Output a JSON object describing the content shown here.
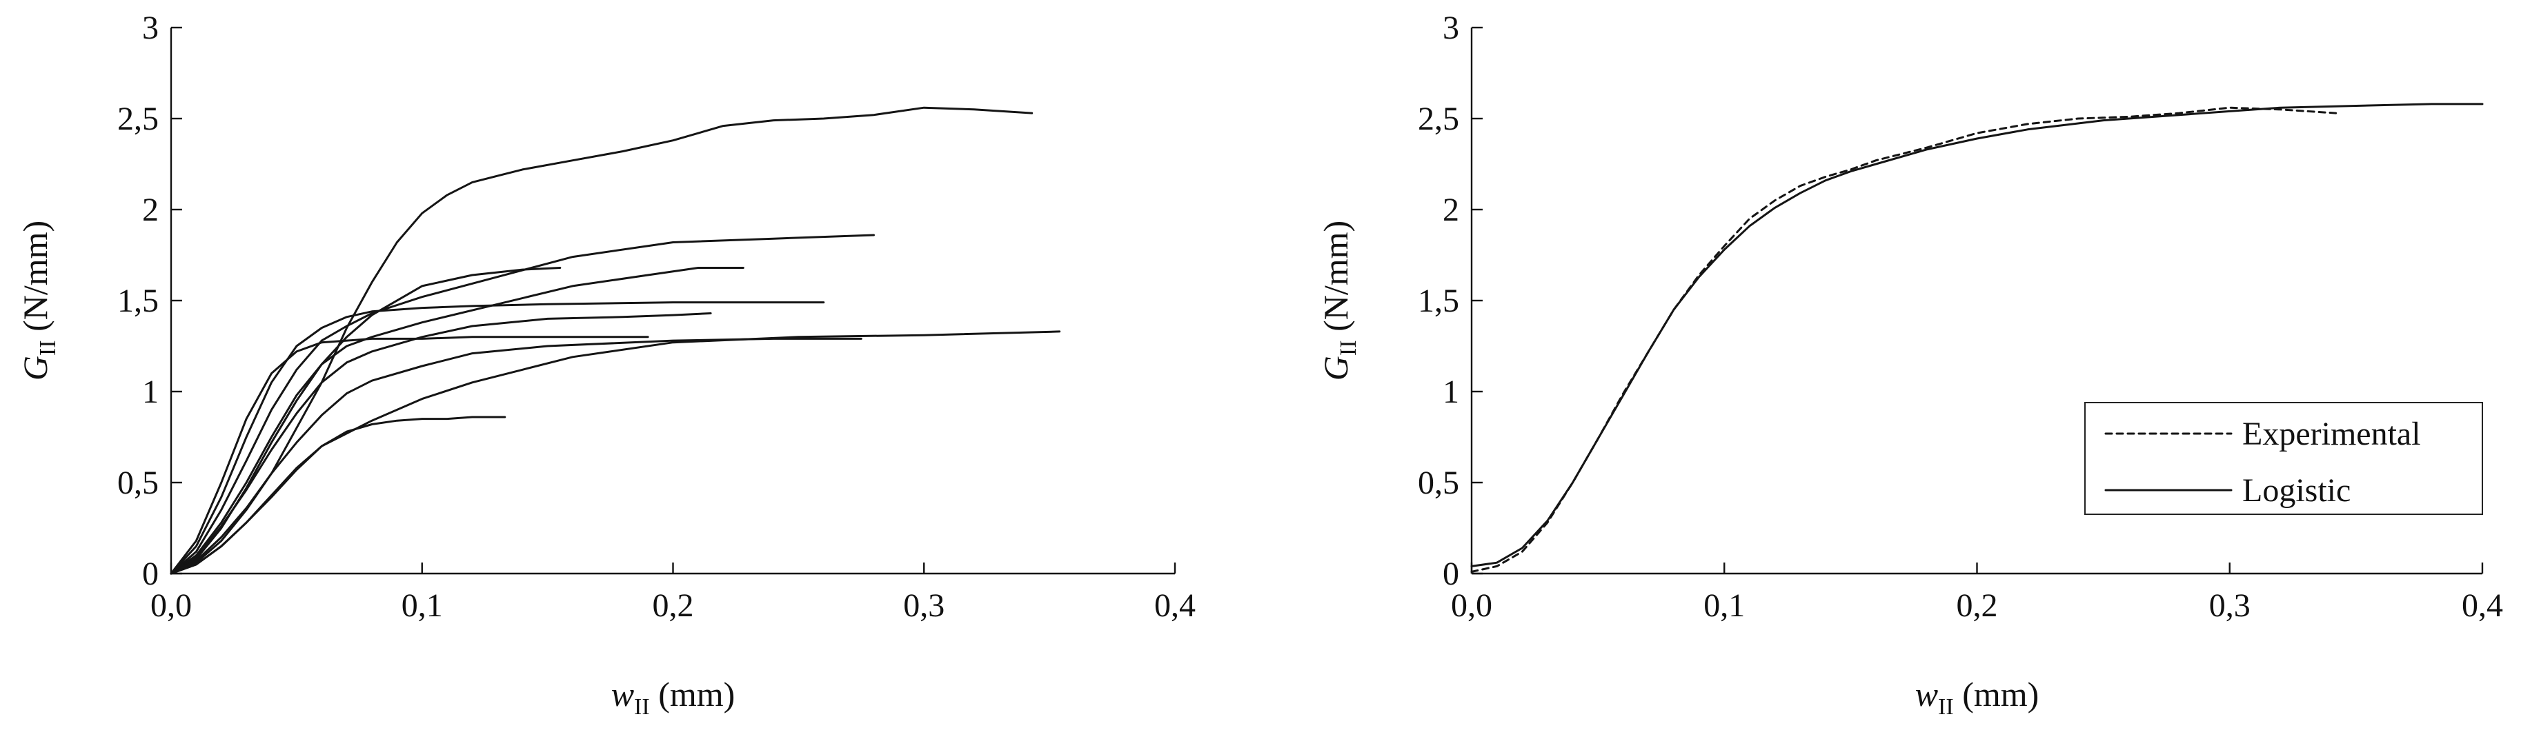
{
  "chart_data": [
    {
      "type": "line",
      "xlabel": {
        "var": "w",
        "sub": "II",
        "unit": " (mm)"
      },
      "ylabel": {
        "var": "G",
        "sub": "II",
        "unit": " (N/mm)"
      },
      "xlim": [
        0,
        0.4
      ],
      "ylim": [
        0,
        3
      ],
      "xticks": [
        "0,0",
        "0,1",
        "0,2",
        "0,3",
        "0,4"
      ],
      "yticks": [
        "0",
        "0,5",
        "1",
        "1,5",
        "2",
        "2,5",
        "3"
      ],
      "grid": false,
      "series": [
        {
          "style": "solid",
          "x": [
            0,
            0.01,
            0.02,
            0.03,
            0.04,
            0.05,
            0.06,
            0.07,
            0.08,
            0.09,
            0.1,
            0.11,
            0.12,
            0.14,
            0.16,
            0.18,
            0.2,
            0.22,
            0.24,
            0.26,
            0.28,
            0.3,
            0.32,
            0.343
          ],
          "y": [
            0,
            0.06,
            0.18,
            0.35,
            0.55,
            0.8,
            1.05,
            1.35,
            1.6,
            1.82,
            1.98,
            2.08,
            2.15,
            2.22,
            2.27,
            2.32,
            2.38,
            2.46,
            2.49,
            2.5,
            2.52,
            2.56,
            2.55,
            2.53
          ]
        },
        {
          "style": "solid",
          "x": [
            0,
            0.01,
            0.02,
            0.03,
            0.04,
            0.05,
            0.06,
            0.07,
            0.08,
            0.1,
            0.13,
            0.16,
            0.2,
            0.24,
            0.28
          ],
          "y": [
            0,
            0.12,
            0.35,
            0.62,
            0.9,
            1.12,
            1.28,
            1.36,
            1.43,
            1.52,
            1.63,
            1.74,
            1.82,
            1.84,
            1.86
          ]
        },
        {
          "style": "solid",
          "x": [
            0,
            0.01,
            0.02,
            0.03,
            0.04,
            0.05,
            0.06,
            0.07,
            0.08,
            0.1,
            0.13,
            0.16,
            0.19,
            0.21,
            0.228
          ],
          "y": [
            0,
            0.1,
            0.28,
            0.5,
            0.75,
            0.98,
            1.15,
            1.25,
            1.3,
            1.38,
            1.48,
            1.58,
            1.64,
            1.68,
            1.68
          ]
        },
        {
          "style": "solid",
          "x": [
            0,
            0.01,
            0.02,
            0.03,
            0.04,
            0.05,
            0.06,
            0.07,
            0.08,
            0.1,
            0.12,
            0.15,
            0.2,
            0.26
          ],
          "y": [
            0,
            0.15,
            0.42,
            0.75,
            1.05,
            1.25,
            1.35,
            1.41,
            1.44,
            1.46,
            1.47,
            1.48,
            1.49,
            1.49
          ]
        },
        {
          "style": "solid",
          "x": [
            0,
            0.01,
            0.02,
            0.03,
            0.04,
            0.05,
            0.06,
            0.07,
            0.08,
            0.1,
            0.12,
            0.15,
            0.18,
            0.2,
            0.215
          ],
          "y": [
            0,
            0.09,
            0.26,
            0.46,
            0.68,
            0.88,
            1.05,
            1.16,
            1.22,
            1.3,
            1.36,
            1.4,
            1.41,
            1.42,
            1.43
          ]
        },
        {
          "style": "solid",
          "x": [
            0,
            0.01,
            0.02,
            0.03,
            0.04,
            0.05,
            0.06,
            0.07,
            0.08,
            0.1,
            0.12,
            0.14,
            0.155
          ],
          "y": [
            0,
            0.08,
            0.25,
            0.47,
            0.72,
            0.95,
            1.15,
            1.3,
            1.42,
            1.58,
            1.64,
            1.67,
            1.68
          ]
        },
        {
          "style": "solid",
          "x": [
            0,
            0.01,
            0.02,
            0.03,
            0.04,
            0.05,
            0.06,
            0.07,
            0.08,
            0.1,
            0.12,
            0.15,
            0.19
          ],
          "y": [
            0,
            0.18,
            0.5,
            0.85,
            1.1,
            1.22,
            1.27,
            1.28,
            1.29,
            1.29,
            1.3,
            1.3,
            1.3
          ]
        },
        {
          "style": "solid",
          "x": [
            0,
            0.01,
            0.02,
            0.03,
            0.04,
            0.05,
            0.06,
            0.08,
            0.1,
            0.12,
            0.14,
            0.16,
            0.2,
            0.25,
            0.3,
            0.354
          ],
          "y": [
            0,
            0.05,
            0.15,
            0.28,
            0.42,
            0.57,
            0.7,
            0.84,
            0.96,
            1.05,
            1.12,
            1.19,
            1.27,
            1.3,
            1.31,
            1.33
          ]
        },
        {
          "style": "solid",
          "x": [
            0,
            0.01,
            0.02,
            0.03,
            0.04,
            0.05,
            0.06,
            0.07,
            0.08,
            0.1,
            0.12,
            0.15,
            0.2,
            0.24,
            0.275
          ],
          "y": [
            0,
            0.07,
            0.2,
            0.36,
            0.55,
            0.72,
            0.87,
            0.99,
            1.06,
            1.14,
            1.21,
            1.25,
            1.28,
            1.29,
            1.29
          ]
        },
        {
          "style": "solid",
          "x": [
            0,
            0.01,
            0.02,
            0.03,
            0.04,
            0.05,
            0.06,
            0.07,
            0.08,
            0.09,
            0.1,
            0.11,
            0.12,
            0.133
          ],
          "y": [
            0,
            0.05,
            0.15,
            0.28,
            0.43,
            0.58,
            0.7,
            0.78,
            0.82,
            0.84,
            0.85,
            0.85,
            0.86,
            0.86
          ]
        }
      ]
    },
    {
      "type": "line",
      "xlabel": {
        "var": "w",
        "sub": "II",
        "unit": " (mm)"
      },
      "ylabel": {
        "var": "G",
        "sub": "II",
        "unit": " (N/mm)"
      },
      "xlim": [
        0,
        0.4
      ],
      "ylim": [
        0,
        3
      ],
      "xticks": [
        "0,0",
        "0,1",
        "0,2",
        "0,3",
        "0,4"
      ],
      "yticks": [
        "0",
        "0,5",
        "1",
        "1,5",
        "2",
        "2,5",
        "3"
      ],
      "grid": false,
      "legend": {
        "position": "bottom-right"
      },
      "series": [
        {
          "name": "Experimental",
          "style": "dashed",
          "x": [
            0,
            0.01,
            0.02,
            0.03,
            0.04,
            0.05,
            0.06,
            0.07,
            0.08,
            0.09,
            0.1,
            0.11,
            0.12,
            0.13,
            0.14,
            0.15,
            0.16,
            0.18,
            0.2,
            0.22,
            0.24,
            0.26,
            0.28,
            0.3,
            0.32,
            0.342
          ],
          "y": [
            0.01,
            0.04,
            0.12,
            0.28,
            0.5,
            0.74,
            0.99,
            1.22,
            1.45,
            1.64,
            1.8,
            1.95,
            2.05,
            2.13,
            2.18,
            2.22,
            2.27,
            2.34,
            2.42,
            2.47,
            2.5,
            2.51,
            2.53,
            2.56,
            2.55,
            2.53
          ]
        },
        {
          "name": "Logistic",
          "style": "solid",
          "x": [
            0,
            0.01,
            0.02,
            0.03,
            0.04,
            0.05,
            0.06,
            0.07,
            0.08,
            0.09,
            0.1,
            0.11,
            0.12,
            0.13,
            0.14,
            0.15,
            0.16,
            0.18,
            0.2,
            0.22,
            0.25,
            0.28,
            0.3,
            0.32,
            0.35,
            0.38,
            0.4
          ],
          "y": [
            0.04,
            0.06,
            0.14,
            0.29,
            0.5,
            0.74,
            0.98,
            1.22,
            1.45,
            1.63,
            1.78,
            1.91,
            2.01,
            2.09,
            2.16,
            2.21,
            2.25,
            2.33,
            2.39,
            2.44,
            2.49,
            2.52,
            2.54,
            2.56,
            2.57,
            2.58,
            2.58
          ]
        }
      ]
    }
  ]
}
